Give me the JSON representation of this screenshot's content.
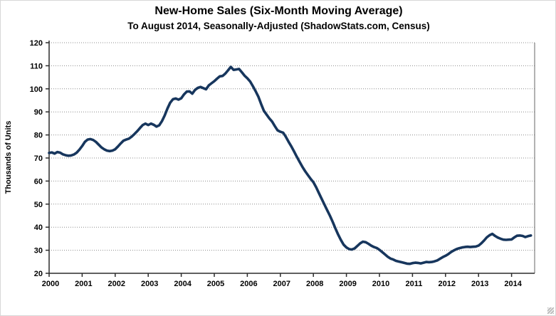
{
  "page": {
    "background": "#ffffff",
    "outer_border": "#d8d8d8"
  },
  "chart_data": {
    "type": "line",
    "title": "New-Home Sales (Six-Month Moving Average)",
    "subtitle": "To August 2014, Seasonally-Adjusted (ShadowStats.com, Census)",
    "xlabel": "",
    "ylabel": "Thousands of Units",
    "ylim": [
      20,
      120
    ],
    "yticks": [
      20,
      30,
      40,
      50,
      60,
      70,
      80,
      90,
      100,
      110,
      120
    ],
    "xticks": [
      "2000",
      "2001",
      "2002",
      "2003",
      "2004",
      "2005",
      "2006",
      "2007",
      "2008",
      "2009",
      "2010",
      "2011",
      "2012",
      "2013",
      "2014"
    ],
    "grid": "horizontal dotted gray lines at each 10-unit level",
    "legend_position": "none",
    "line_color": "#17365d",
    "grid_color": "#8c8c8c",
    "axis_color": "#2b2b2b",
    "frame_color": "#808080",
    "series": [
      {
        "name": "New-home sales, six-month moving average (thousands of units)",
        "frequency": "monthly",
        "start": "2000-01",
        "end": "2014-08",
        "values": [
          72.2,
          72.4,
          71.9,
          72.6,
          72.3,
          71.6,
          71.2,
          71.0,
          71.1,
          71.5,
          72.3,
          73.6,
          75.2,
          77.0,
          78.0,
          78.2,
          77.8,
          77.0,
          75.8,
          74.6,
          73.8,
          73.2,
          73.0,
          73.2,
          73.8,
          75.0,
          76.3,
          77.5,
          78.0,
          78.4,
          79.3,
          80.4,
          81.6,
          83.0,
          84.3,
          84.9,
          84.3,
          84.9,
          84.4,
          83.6,
          84.2,
          86.0,
          88.5,
          91.5,
          94.0,
          95.5,
          95.8,
          95.3,
          95.9,
          97.6,
          98.8,
          98.9,
          97.9,
          99.5,
          100.4,
          100.8,
          100.3,
          99.8,
          101.5,
          102.4,
          103.3,
          104.4,
          105.4,
          105.6,
          106.6,
          108.0,
          109.5,
          108.2,
          108.4,
          108.6,
          107.2,
          105.7,
          104.6,
          103.2,
          101.2,
          99.0,
          96.6,
          93.5,
          90.5,
          88.8,
          87.2,
          85.8,
          83.8,
          82.0,
          81.4,
          81.0,
          79.2,
          77.0,
          75.0,
          72.8,
          70.5,
          68.3,
          66.2,
          64.3,
          62.6,
          61.0,
          59.5,
          57.3,
          54.8,
          52.3,
          49.8,
          47.4,
          45.0,
          42.3,
          39.5,
          36.8,
          34.4,
          32.4,
          31.2,
          30.5,
          30.3,
          30.8,
          31.9,
          33.0,
          33.7,
          33.5,
          32.8,
          32.0,
          31.4,
          31.0,
          30.2,
          29.2,
          28.2,
          27.2,
          26.4,
          26.0,
          25.4,
          25.1,
          24.8,
          24.5,
          24.2,
          24.1,
          24.4,
          24.6,
          24.5,
          24.3,
          24.6,
          24.9,
          24.8,
          24.9,
          25.2,
          25.6,
          26.3,
          27.0,
          27.6,
          28.3,
          29.2,
          29.9,
          30.5,
          30.9,
          31.2,
          31.4,
          31.5,
          31.4,
          31.5,
          31.6,
          32.0,
          33.0,
          34.2,
          35.6,
          36.5,
          37.1,
          36.2,
          35.5,
          35.0,
          34.6,
          34.5,
          34.6,
          34.7,
          35.6,
          36.3,
          36.4,
          36.2,
          35.7,
          36.1,
          36.4
        ]
      }
    ]
  }
}
